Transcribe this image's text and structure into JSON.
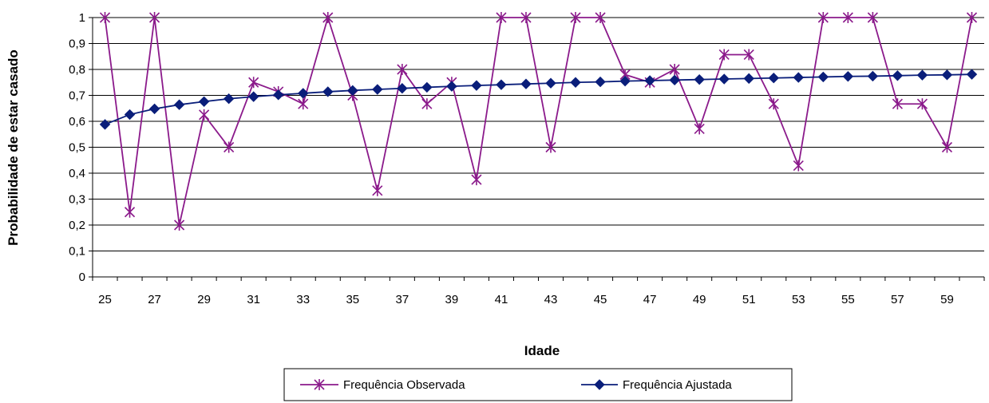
{
  "chart_data": {
    "type": "line",
    "xlabel": "Idade",
    "ylabel": "Probabilidade de estar casado",
    "ylim": [
      0,
      1
    ],
    "y_ticks": [
      "0",
      "0,1",
      "0,2",
      "0,3",
      "0,4",
      "0,5",
      "0,6",
      "0,7",
      "0,8",
      "0,9",
      "1"
    ],
    "x": [
      25,
      26,
      27,
      28,
      29,
      30,
      31,
      32,
      33,
      34,
      35,
      36,
      37,
      38,
      39,
      40,
      41,
      42,
      43,
      44,
      45,
      46,
      47,
      48,
      49,
      50,
      51,
      52,
      53,
      54,
      55,
      56,
      57,
      58,
      59,
      60
    ],
    "x_tick_labels": [
      "25",
      "27",
      "29",
      "31",
      "33",
      "35",
      "37",
      "39",
      "41",
      "43",
      "45",
      "47",
      "49",
      "51",
      "53",
      "55",
      "57",
      "59"
    ],
    "grid": true,
    "legend_position": "bottom",
    "series": [
      {
        "name": "Frequência Observada",
        "color": "#8B1A8B",
        "marker": "asterisk",
        "values": [
          1,
          0.25,
          1,
          0.2,
          0.625,
          0.5,
          0.75,
          0.714,
          0.667,
          1,
          0.7,
          0.333,
          0.8,
          0.667,
          0.75,
          0.375,
          1,
          1,
          0.5,
          1,
          1,
          0.78,
          0.75,
          0.8,
          0.571,
          0.857,
          0.857,
          0.667,
          0.429,
          1,
          1,
          1,
          0.667,
          0.667,
          0.5,
          1
        ]
      },
      {
        "name": "Frequência Ajustada",
        "color": "#0A1E7A",
        "marker": "diamond",
        "values": [
          0.588,
          0.626,
          0.648,
          0.664,
          0.676,
          0.687,
          0.695,
          0.702,
          0.708,
          0.714,
          0.719,
          0.723,
          0.727,
          0.731,
          0.735,
          0.738,
          0.741,
          0.744,
          0.747,
          0.75,
          0.752,
          0.755,
          0.757,
          0.759,
          0.761,
          0.763,
          0.765,
          0.767,
          0.769,
          0.771,
          0.773,
          0.774,
          0.776,
          0.778,
          0.779,
          0.781
        ]
      }
    ]
  }
}
